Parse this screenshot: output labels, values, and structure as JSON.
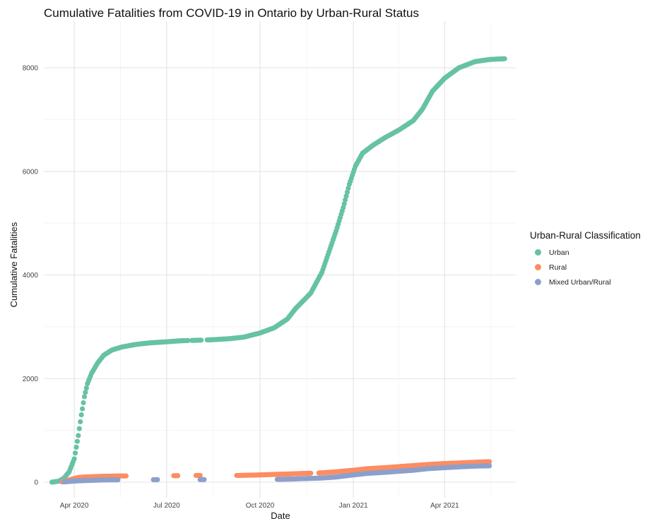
{
  "chart_data": {
    "type": "scatter",
    "title": "Cumulative Fatalities from COVID-19 in Ontario by Urban-Rural Status",
    "xlabel": "Date",
    "ylabel": "Cumulative Fatalities",
    "xlim": [
      "2020-03-02",
      "2021-06-10"
    ],
    "ylim": [
      -300,
      8900
    ],
    "x_ticks": [
      {
        "date": "2020-04-01",
        "label": "Apr 2020"
      },
      {
        "date": "2020-07-01",
        "label": "Jul 2020"
      },
      {
        "date": "2020-10-01",
        "label": "Oct 2020"
      },
      {
        "date": "2021-01-01",
        "label": "Jan 2021"
      },
      {
        "date": "2021-04-01",
        "label": "Apr 2021"
      }
    ],
    "y_ticks": [
      {
        "value": 0,
        "label": "0"
      },
      {
        "value": 2000,
        "label": "2000"
      },
      {
        "value": 4000,
        "label": "4000"
      },
      {
        "value": 6000,
        "label": "6000"
      },
      {
        "value": 8000,
        "label": "8000"
      }
    ],
    "grid": true,
    "legend_title": "Urban-Rural Classification",
    "legend_position": "right",
    "series": [
      {
        "name": "Urban",
        "color": "#66C2A5",
        "points": [
          [
            "2020-03-10",
            0
          ],
          [
            "2020-03-17",
            20
          ],
          [
            "2020-03-22",
            80
          ],
          [
            "2020-03-27",
            200
          ],
          [
            "2020-04-01",
            450
          ],
          [
            "2020-04-05",
            900
          ],
          [
            "2020-04-08",
            1300
          ],
          [
            "2020-04-11",
            1650
          ],
          [
            "2020-04-14",
            1900
          ],
          [
            "2020-04-18",
            2100
          ],
          [
            "2020-04-24",
            2300
          ],
          [
            "2020-04-30",
            2450
          ],
          [
            "2020-05-08",
            2550
          ],
          [
            "2020-05-18",
            2610
          ],
          [
            "2020-06-01",
            2660
          ],
          [
            "2020-06-15",
            2690
          ],
          [
            "2020-07-01",
            2710
          ],
          [
            "2020-07-15",
            2730
          ],
          [
            "2020-08-01",
            2740
          ],
          [
            "2020-08-15",
            2750
          ],
          [
            "2020-09-01",
            2770
          ],
          [
            "2020-09-15",
            2800
          ],
          [
            "2020-10-01",
            2880
          ],
          [
            "2020-10-15",
            2980
          ],
          [
            "2020-10-28",
            3150
          ],
          [
            "2020-11-05",
            3350
          ],
          [
            "2020-11-20",
            3650
          ],
          [
            "2020-12-01",
            4050
          ],
          [
            "2020-12-08",
            4450
          ],
          [
            "2020-12-15",
            4850
          ],
          [
            "2020-12-22",
            5300
          ],
          [
            "2020-12-28",
            5750
          ],
          [
            "2021-01-03",
            6100
          ],
          [
            "2021-01-10",
            6350
          ],
          [
            "2021-01-20",
            6500
          ],
          [
            "2021-02-01",
            6650
          ],
          [
            "2021-02-15",
            6800
          ],
          [
            "2021-03-01",
            6980
          ],
          [
            "2021-03-10",
            7200
          ],
          [
            "2021-03-20",
            7550
          ],
          [
            "2021-04-01",
            7800
          ],
          [
            "2021-04-15",
            8000
          ],
          [
            "2021-05-01",
            8120
          ],
          [
            "2021-05-15",
            8160
          ],
          [
            "2021-05-30",
            8175
          ]
        ]
      },
      {
        "name": "Rural",
        "color": "#FC8D62",
        "points": [
          [
            "2020-03-20",
            5
          ],
          [
            "2020-03-25",
            30
          ],
          [
            "2020-03-30",
            60
          ],
          [
            "2020-04-05",
            90
          ],
          [
            "2020-04-12",
            100
          ],
          [
            "2020-04-18",
            105
          ],
          [
            "2020-04-24",
            110
          ],
          [
            "2020-05-05",
            115
          ],
          [
            "2020-05-15",
            120
          ],
          [
            "2020-05-20",
            120
          ],
          [
            "2020-07-10",
            125
          ],
          [
            "2020-08-01",
            130
          ],
          [
            "2020-09-10",
            130
          ],
          [
            "2020-09-15",
            132
          ],
          [
            "2020-09-22",
            135
          ],
          [
            "2020-10-01",
            140
          ],
          [
            "2020-10-15",
            150
          ],
          [
            "2020-11-01",
            160
          ],
          [
            "2020-11-15",
            170
          ],
          [
            "2020-12-01",
            180
          ],
          [
            "2020-12-15",
            200
          ],
          [
            "2021-01-01",
            230
          ],
          [
            "2021-01-15",
            260
          ],
          [
            "2021-02-01",
            280
          ],
          [
            "2021-02-15",
            300
          ],
          [
            "2021-03-01",
            320
          ],
          [
            "2021-03-15",
            340
          ],
          [
            "2021-04-01",
            360
          ],
          [
            "2021-04-15",
            370
          ],
          [
            "2021-05-01",
            385
          ],
          [
            "2021-05-15",
            395
          ]
        ]
      },
      {
        "name": "Mixed Urban/Rural",
        "color": "#8DA0CB",
        "points": [
          [
            "2020-03-22",
            5
          ],
          [
            "2020-03-28",
            15
          ],
          [
            "2020-04-04",
            25
          ],
          [
            "2020-04-10",
            30
          ],
          [
            "2020-04-18",
            35
          ],
          [
            "2020-04-25",
            40
          ],
          [
            "2020-05-05",
            45
          ],
          [
            "2020-05-12",
            45
          ],
          [
            "2020-06-20",
            48
          ],
          [
            "2020-08-05",
            50
          ],
          [
            "2020-10-20",
            55
          ],
          [
            "2020-11-01",
            60
          ],
          [
            "2020-11-15",
            70
          ],
          [
            "2020-12-01",
            80
          ],
          [
            "2020-12-15",
            100
          ],
          [
            "2021-01-01",
            140
          ],
          [
            "2021-01-15",
            170
          ],
          [
            "2021-02-01",
            190
          ],
          [
            "2021-02-15",
            210
          ],
          [
            "2021-03-01",
            230
          ],
          [
            "2021-03-15",
            260
          ],
          [
            "2021-04-01",
            280
          ],
          [
            "2021-04-15",
            295
          ],
          [
            "2021-05-01",
            310
          ],
          [
            "2021-05-15",
            315
          ]
        ]
      }
    ]
  }
}
